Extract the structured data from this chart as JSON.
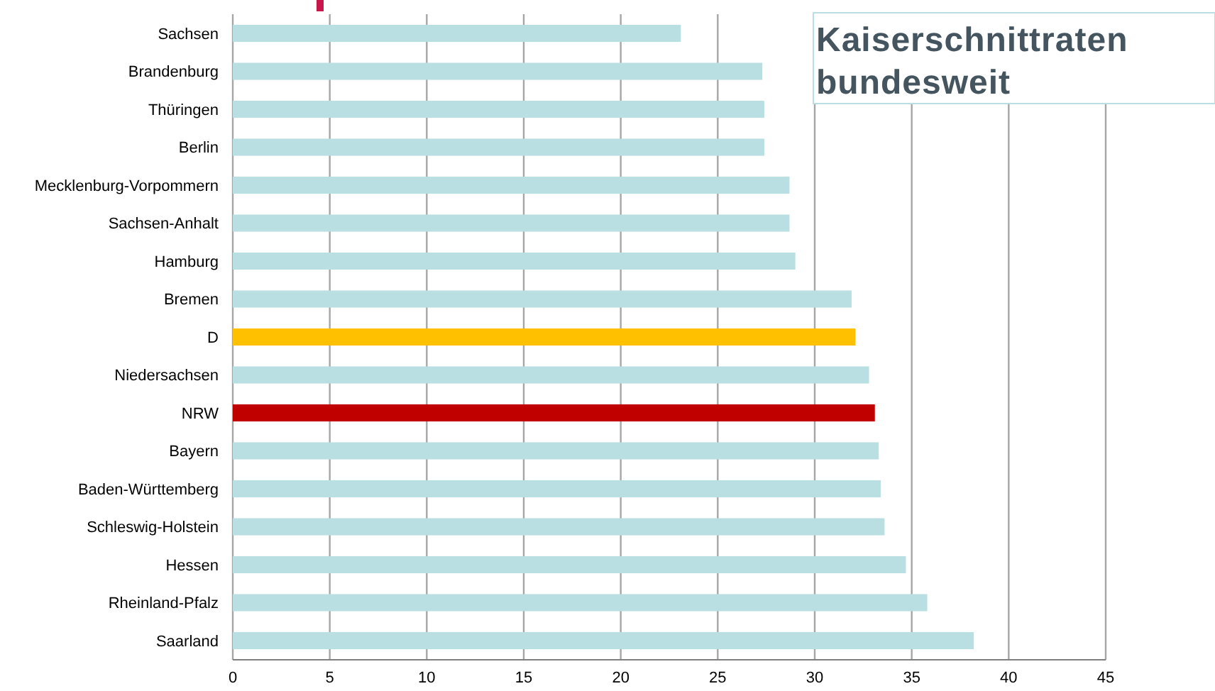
{
  "chart_data": {
    "type": "bar",
    "orientation": "horizontal",
    "title": "Kaiserschnittraten bundesweit",
    "categories": [
      "Sachsen",
      "Brandenburg",
      "Thüringen",
      "Berlin",
      "Mecklenburg-Vorpommern",
      "Sachsen-Anhalt",
      "Hamburg",
      "Bremen",
      "D",
      "Niedersachsen",
      "NRW",
      "Bayern",
      "Baden-Württemberg",
      "Schleswig-Holstein",
      "Hessen",
      "Rheinland-Pfalz",
      "Saarland"
    ],
    "values": [
      23.1,
      27.3,
      27.4,
      27.4,
      28.7,
      28.7,
      29.0,
      31.9,
      32.1,
      32.8,
      33.1,
      33.3,
      33.4,
      33.6,
      34.7,
      35.8,
      38.2
    ],
    "colors": [
      "#b9dfe2",
      "#b9dfe2",
      "#b9dfe2",
      "#b9dfe2",
      "#b9dfe2",
      "#b9dfe2",
      "#b9dfe2",
      "#b9dfe2",
      "#ffc000",
      "#b9dfe2",
      "#c00000",
      "#b9dfe2",
      "#b9dfe2",
      "#b9dfe2",
      "#b9dfe2",
      "#b9dfe2",
      "#b9dfe2"
    ],
    "xlim": [
      0,
      45
    ],
    "xticks": [
      0,
      5,
      10,
      15,
      20,
      25,
      30,
      35,
      40,
      45
    ],
    "grid": "x"
  }
}
